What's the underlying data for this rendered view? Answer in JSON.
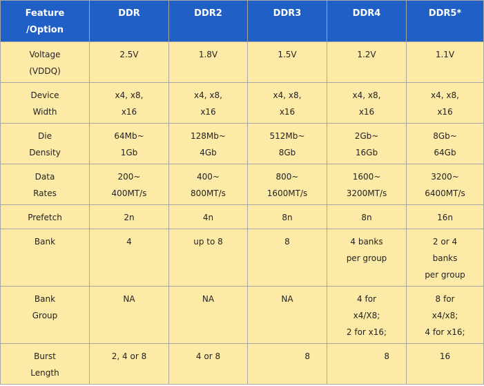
{
  "headers": [
    "Feature\n/Option",
    "DDR",
    "DDR2",
    "DDR3",
    "DDR4",
    "DDR5*"
  ],
  "rows": [
    {
      "feature": "Voltage\n(VDDQ)",
      "cells": [
        "2.5V",
        "1.8V",
        "1.5V",
        "1.2V",
        "1.1V"
      ]
    },
    {
      "feature": "Device\nWidth",
      "cells": [
        "x4, x8,\nx16",
        "x4, x8,\nx16",
        "x4, x8,\nx16",
        "x4, x8,\nx16",
        "x4, x8,\nx16"
      ]
    },
    {
      "feature": "Die\nDensity",
      "cells": [
        "64Mb~\n1Gb",
        "128Mb~\n4Gb",
        "512Mb~\n8Gb",
        "2Gb~\n16Gb",
        "8Gb~\n64Gb"
      ]
    },
    {
      "feature": "Data\nRates",
      "cells": [
        "200~\n400MT/s",
        "400~\n800MT/s",
        "800~\n1600MT/s",
        "1600~\n3200MT/s",
        "3200~\n6400MT/s"
      ]
    },
    {
      "feature": "Prefetch",
      "cells": [
        "2n",
        "4n",
        "8n",
        "8n",
        "16n"
      ]
    },
    {
      "feature": "Bank",
      "cells": [
        "4",
        "up to 8",
        "8",
        "4 banks\nper group",
        "2 or 4\nbanks\nper group"
      ]
    },
    {
      "feature": "Bank\nGroup",
      "cells": [
        "NA",
        "NA",
        "NA",
        "4 for\nx4/X8;\n2 for x16;",
        "8 for\nx4/x8;\n4 for x16;"
      ]
    },
    {
      "feature": "Burst\nLength",
      "cells": [
        "2, 4 or 8",
        "4 or 8",
        "8",
        "8",
        "16"
      ]
    }
  ],
  "colors": {
    "header_bg": "#1f5fc6",
    "cell_bg": "#fdeaa6",
    "border": "#a6a6a6"
  }
}
